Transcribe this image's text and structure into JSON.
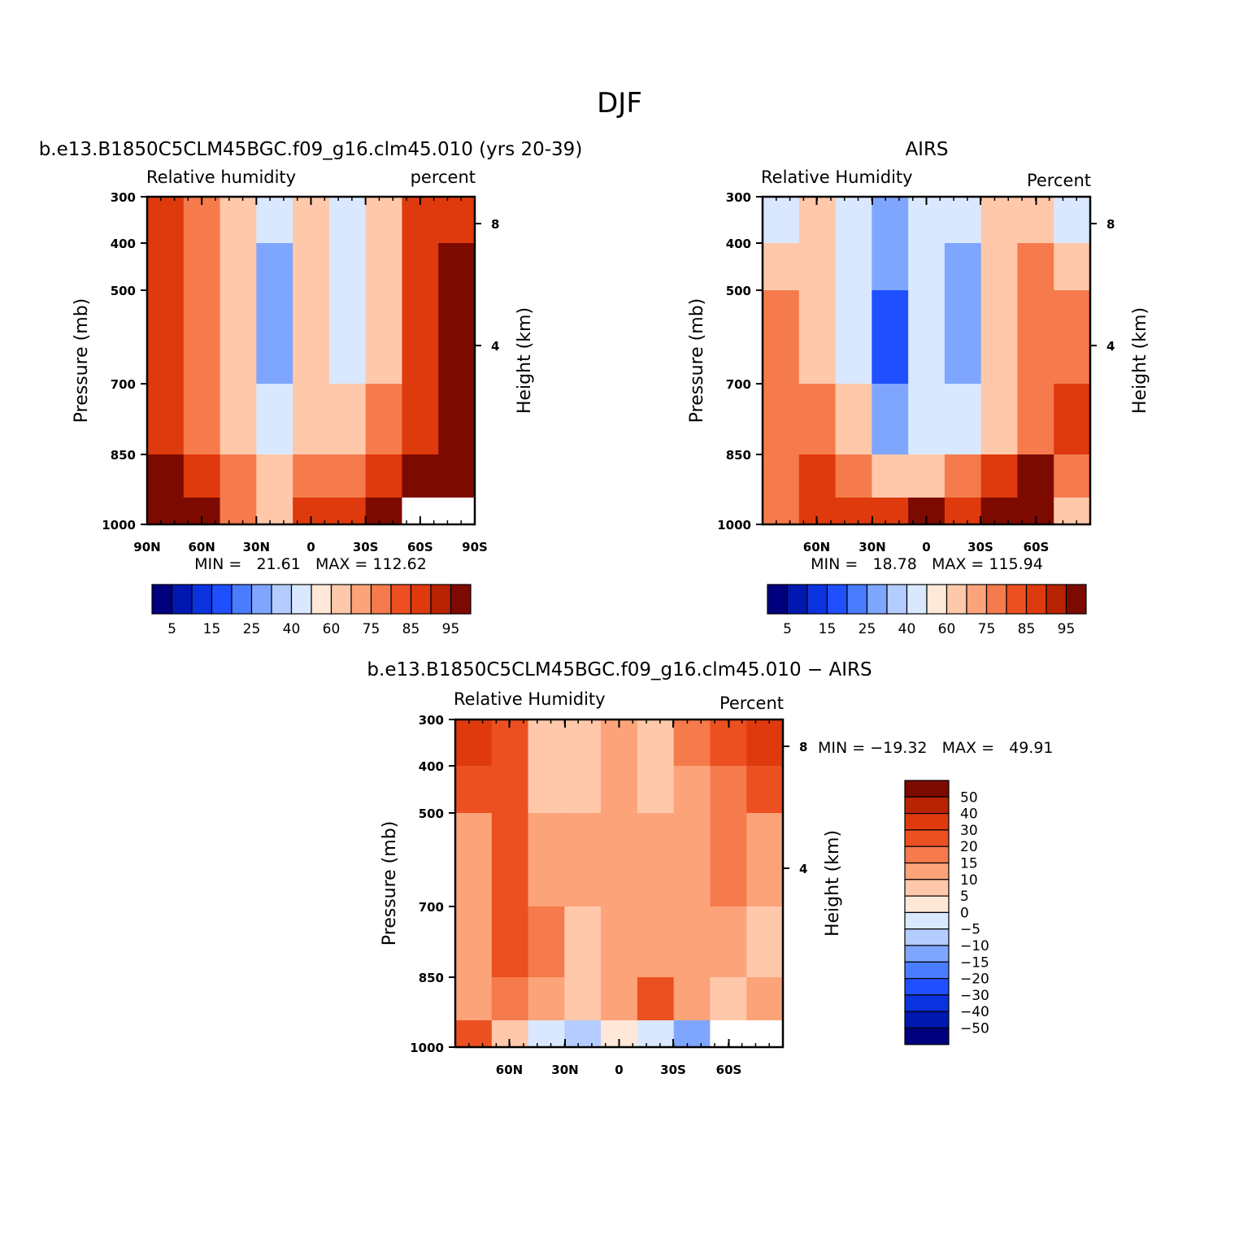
{
  "figure_title": "DJF",
  "panels": [
    {
      "id": "model",
      "title": "b.e13.B1850C5CLM45BGC.f09_g16.clm45.010 (yrs 20-39)",
      "left_label": "Relative humidity",
      "right_label": "percent",
      "stats": "MIN =   21.61   MAX = 112.62"
    },
    {
      "id": "obs",
      "title": "AIRS",
      "left_label": "Relative Humidity",
      "right_label": "Percent",
      "stats": "MIN =   18.78   MAX = 115.94"
    },
    {
      "id": "diff",
      "title": "b.e13.B1850C5CLM45BGC.f09_g16.clm45.010 − AIRS",
      "left_label": "Relative Humidity",
      "right_label": "Percent",
      "stats": "MIN = −19.32   MAX =   49.91"
    }
  ],
  "colorbars": {
    "absolute": {
      "colors": [
        "#00007f",
        "#0018b0",
        "#0a33df",
        "#1f4fff",
        "#4a7cff",
        "#7fa6ff",
        "#b4ccff",
        "#d9e8ff",
        "#ffe8d8",
        "#ffc8aa",
        "#fca37a",
        "#f57a4c",
        "#ec5020",
        "#de3a0d",
        "#b82303",
        "#7d0a00"
      ],
      "labels": [
        "5",
        "15",
        "25",
        "40",
        "60",
        "75",
        "85",
        "95"
      ]
    },
    "difference": {
      "colors": [
        "#7d0a00",
        "#b82303",
        "#de3a0d",
        "#ec5020",
        "#f57a4c",
        "#fca37a",
        "#ffc8aa",
        "#ffe8d8",
        "#d9e8ff",
        "#b4ccff",
        "#7fa6ff",
        "#4a7cff",
        "#1f4fff",
        "#0a33df",
        "#0018b0",
        "#00007f"
      ],
      "labels": [
        "50",
        "40",
        "30",
        "20",
        "15",
        "10",
        "5",
        "0",
        "−5",
        "−10",
        "−15",
        "−20",
        "−30",
        "−40",
        "−50"
      ]
    }
  },
  "axes": {
    "y_label": "Pressure (mb)",
    "y_right_label": "Height (km)",
    "y_ticks": [
      "300",
      "400",
      "500",
      "700",
      "850",
      "1000"
    ],
    "y_right_ticks": [
      "8",
      "4"
    ],
    "x_ticks_full": [
      "90N",
      "60N",
      "30N",
      "0",
      "30S",
      "60S",
      "90S"
    ],
    "x_ticks_partial": [
      "60N",
      "30N",
      "0",
      "30S",
      "60S"
    ]
  },
  "chart_data": [
    {
      "type": "heatmap",
      "title": "b.e13.B1850C5CLM45BGC.f09_g16.clm45.010 (yrs 20-39)",
      "xlabel": "",
      "ylabel": "Pressure (mb)",
      "x": [
        "90N",
        "60N",
        "30N",
        "0",
        "30S",
        "60S",
        "90S"
      ],
      "y": [
        300,
        400,
        500,
        700,
        850,
        1000
      ],
      "scale": "absolute",
      "z": [
        [
          85,
          75,
          60,
          40,
          60,
          40,
          60,
          85,
          85
        ],
        [
          85,
          75,
          60,
          25,
          60,
          40,
          60,
          85,
          95
        ],
        [
          85,
          75,
          60,
          25,
          60,
          40,
          60,
          85,
          95
        ],
        [
          85,
          75,
          60,
          40,
          60,
          60,
          75,
          85,
          95
        ],
        [
          95,
          85,
          75,
          60,
          75,
          75,
          85,
          95,
          95
        ],
        [
          100,
          95,
          75,
          60,
          85,
          85,
          95,
          null,
          null
        ]
      ],
      "zmin": 21.61,
      "zmax": 112.62
    },
    {
      "type": "heatmap",
      "title": "AIRS",
      "xlabel": "",
      "ylabel": "Pressure (mb)",
      "x": [
        "60N",
        "30N",
        "0",
        "30S",
        "60S"
      ],
      "y": [
        300,
        400,
        500,
        700,
        850,
        1000
      ],
      "scale": "absolute",
      "z": [
        [
          40,
          60,
          40,
          25,
          40,
          40,
          60,
          60,
          40
        ],
        [
          60,
          60,
          40,
          25,
          40,
          25,
          60,
          75,
          60
        ],
        [
          75,
          60,
          40,
          15,
          40,
          25,
          60,
          75,
          75
        ],
        [
          75,
          75,
          60,
          25,
          40,
          40,
          60,
          75,
          85
        ],
        [
          75,
          85,
          75,
          60,
          60,
          75,
          85,
          95,
          75
        ],
        [
          75,
          85,
          85,
          85,
          95,
          85,
          95,
          100,
          60
        ]
      ],
      "zmin": 18.78,
      "zmax": 115.94
    },
    {
      "type": "heatmap",
      "title": "b.e13.B1850C5CLM45BGC.f09_g16.clm45.010 − AIRS",
      "xlabel": "",
      "ylabel": "Pressure (mb)",
      "x": [
        "60N",
        "30N",
        "0",
        "30S",
        "60S"
      ],
      "y": [
        300,
        400,
        500,
        700,
        850,
        1000
      ],
      "scale": "difference",
      "z": [
        [
          30,
          20,
          5,
          5,
          10,
          5,
          15,
          20,
          30
        ],
        [
          20,
          20,
          5,
          5,
          10,
          5,
          10,
          15,
          20
        ],
        [
          10,
          20,
          10,
          10,
          10,
          10,
          10,
          15,
          10
        ],
        [
          10,
          20,
          15,
          5,
          10,
          10,
          10,
          10,
          5
        ],
        [
          10,
          15,
          10,
          5,
          10,
          25,
          10,
          5,
          10
        ],
        [
          20,
          5,
          -5,
          -10,
          0,
          -5,
          -15,
          null,
          null
        ]
      ],
      "zmin": -19.32,
      "zmax": 49.91
    }
  ]
}
